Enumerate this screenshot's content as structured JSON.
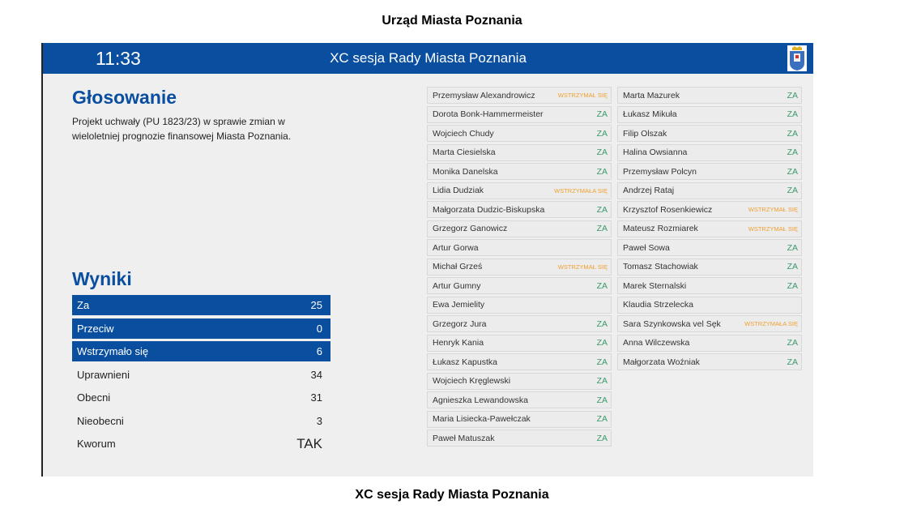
{
  "page_title": "Urząd Miasta Poznania",
  "caption": "XC sesja Rady Miasta Poznania",
  "header": {
    "clock": "11:33",
    "session": "XC sesja Rady Miasta Poznania"
  },
  "voting": {
    "heading": "Głosowanie",
    "description": "Projekt uchwały (PU 1823/23) w sprawie zmian w wieloletniej prognozie finansowej Miasta Poznania."
  },
  "results": {
    "heading": "Wyniki",
    "bars": [
      {
        "label": "Za",
        "value": "25"
      },
      {
        "label": "Przeciw",
        "value": "0"
      },
      {
        "label": "Wstrzymało się",
        "value": "6"
      }
    ],
    "rows": [
      {
        "label": "Uprawnieni",
        "value": "34"
      },
      {
        "label": "Obecni",
        "value": "31"
      },
      {
        "label": "Nieobecni",
        "value": "3"
      },
      {
        "label": "Kworum",
        "value": "TAK"
      }
    ]
  },
  "colors": {
    "brand": "#0a4ea0",
    "za": "#3b9a6a",
    "abstain": "#f0a030"
  },
  "left_votes": [
    {
      "name": "Przemysław Alexandrowicz",
      "vote": "WSTRZYMAŁ SIĘ"
    },
    {
      "name": "Dorota Bonk-Hammermeister",
      "vote": "ZA"
    },
    {
      "name": "Wojciech Chudy",
      "vote": "ZA"
    },
    {
      "name": "Marta Ciesielska",
      "vote": "ZA"
    },
    {
      "name": "Monika Danelska",
      "vote": "ZA"
    },
    {
      "name": "Lidia Dudziak",
      "vote": "WSTRZYMAŁA SIĘ"
    },
    {
      "name": "Małgorzata Dudzic-Biskupska",
      "vote": "ZA"
    },
    {
      "name": "Grzegorz Ganowicz",
      "vote": "ZA"
    },
    {
      "name": "Artur Gorwa",
      "vote": ""
    },
    {
      "name": "Michał Grześ",
      "vote": "WSTRZYMAŁ SIĘ"
    },
    {
      "name": "Artur Gumny",
      "vote": "ZA"
    },
    {
      "name": "Ewa Jemielity",
      "vote": ""
    },
    {
      "name": "Grzegorz Jura",
      "vote": "ZA"
    },
    {
      "name": "Henryk Kania",
      "vote": "ZA"
    },
    {
      "name": "Łukasz Kapustka",
      "vote": "ZA"
    },
    {
      "name": "Wojciech Kręglewski",
      "vote": "ZA"
    },
    {
      "name": "Agnieszka Lewandowska",
      "vote": "ZA"
    },
    {
      "name": "Maria Lisiecka-Pawełczak",
      "vote": "ZA"
    },
    {
      "name": "Paweł Matuszak",
      "vote": "ZA"
    }
  ],
  "right_votes": [
    {
      "name": "Marta Mazurek",
      "vote": "ZA"
    },
    {
      "name": "Łukasz Mikuła",
      "vote": "ZA"
    },
    {
      "name": "Filip Olszak",
      "vote": "ZA"
    },
    {
      "name": "Halina Owsianna",
      "vote": "ZA"
    },
    {
      "name": "Przemysław Polcyn",
      "vote": "ZA"
    },
    {
      "name": "Andrzej Rataj",
      "vote": "ZA"
    },
    {
      "name": "Krzysztof Rosenkiewicz",
      "vote": "WSTRZYMAŁ SIĘ"
    },
    {
      "name": "Mateusz Rozmiarek",
      "vote": "WSTRZYMAŁ SIĘ"
    },
    {
      "name": "Paweł Sowa",
      "vote": "ZA"
    },
    {
      "name": "Tomasz Stachowiak",
      "vote": "ZA"
    },
    {
      "name": "Marek Sternalski",
      "vote": "ZA"
    },
    {
      "name": "Klaudia Strzelecka",
      "vote": ""
    },
    {
      "name": "Sara Szynkowska vel Sęk",
      "vote": "WSTRZYMAŁA SIĘ"
    },
    {
      "name": "Anna Wilczewska",
      "vote": "ZA"
    },
    {
      "name": "Małgorzata Woźniak",
      "vote": "ZA"
    }
  ]
}
